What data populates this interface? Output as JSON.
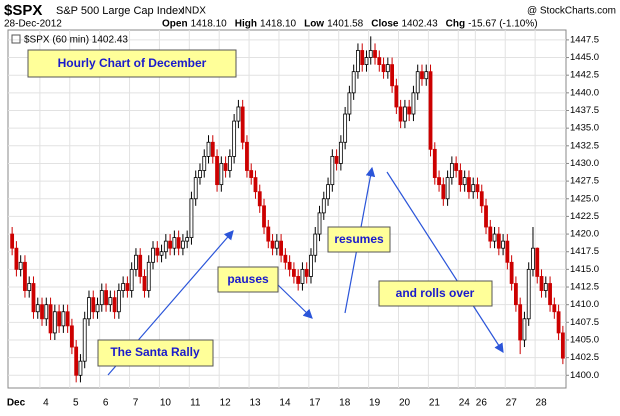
{
  "chart_data": {
    "type": "candlestick",
    "title": "$SPX",
    "subtitle": "S&P 500 Large Cap Index",
    "exchange": "INDX",
    "source": "@ StockCharts.com",
    "date": "28-Dec-2012",
    "header_stats": [
      {
        "label": "Open",
        "value": "1418.10"
      },
      {
        "label": "High",
        "value": "1418.10"
      },
      {
        "label": "Low",
        "value": "1401.58"
      },
      {
        "label": "Close",
        "value": "1402.43"
      },
      {
        "label": "Chg",
        "value": "-15.67 (-1.10%)"
      }
    ],
    "legend": "$SPX (60 min) 1402.43",
    "annotations": [
      "Hourly Chart of December",
      "The Santa Rally",
      "pauses",
      "resumes",
      "and rolls over"
    ],
    "up_color": "#000000",
    "down_color": "#cc0000",
    "grid": true,
    "ylim": [
      1398.2,
      1448.9
    ],
    "yticks": [
      {
        "value": 1400,
        "label": "1400.0"
      },
      1402.5,
      {
        "value": 1405,
        "label": "1405.0"
      },
      1407.5,
      {
        "value": 1410,
        "label": "1410.0"
      },
      1412.5,
      {
        "value": 1415,
        "label": "1415.0"
      },
      1417.5,
      {
        "value": 1420,
        "label": "1420.0"
      },
      1422.5,
      {
        "value": 1425,
        "label": "1425.0"
      },
      1427.5,
      {
        "value": 1430,
        "label": "1430.0"
      },
      1432.5,
      {
        "value": 1435,
        "label": "1435.0"
      },
      1437.5,
      {
        "value": 1440,
        "label": "1440.0"
      },
      1442.5,
      {
        "value": 1445,
        "label": "1445.0"
      },
      1447.5
    ],
    "categories": [
      "Dec",
      null,
      null,
      null,
      null,
      null,
      null,
      "4",
      null,
      null,
      null,
      null,
      null,
      null,
      "5",
      null,
      null,
      null,
      null,
      null,
      null,
      "6",
      null,
      null,
      null,
      null,
      null,
      null,
      "7",
      null,
      null,
      null,
      null,
      null,
      null,
      "10",
      null,
      null,
      null,
      null,
      null,
      null,
      "11",
      null,
      null,
      null,
      null,
      null,
      null,
      "12",
      null,
      null,
      null,
      null,
      null,
      null,
      "13",
      null,
      null,
      null,
      null,
      null,
      null,
      "14",
      null,
      null,
      null,
      null,
      null,
      null,
      "17",
      null,
      null,
      null,
      null,
      null,
      null,
      "18",
      null,
      null,
      null,
      null,
      null,
      null,
      "19",
      null,
      null,
      null,
      null,
      null,
      null,
      "20",
      null,
      null,
      null,
      null,
      null,
      null,
      "21",
      null,
      null,
      null,
      null,
      null,
      null,
      "24",
      null,
      null,
      null,
      "26",
      null,
      null,
      null,
      null,
      null,
      null,
      "27",
      null,
      null,
      null,
      null,
      null,
      null,
      "28",
      null,
      null,
      null,
      null,
      null,
      null
    ],
    "open": [
      1420,
      1418,
      1415,
      1416,
      1412,
      1413,
      1409,
      1410,
      1408,
      1410,
      1406,
      1409,
      1407,
      1409,
      1407,
      1404,
      1400,
      1402,
      1408,
      1411,
      1409,
      1410,
      1412,
      1410,
      1411,
      1409,
      1412,
      1413,
      1412,
      1415,
      1417,
      1414,
      1412,
      1416,
      1418,
      1417,
      1417.5,
      1419,
      1418,
      1419.5,
      1418,
      1419,
      1419.5,
      1425,
      1428,
      1429,
      1431,
      1433,
      1431,
      1427,
      1430,
      1429,
      1431,
      1436,
      1438,
      1433,
      1429,
      1428,
      1426,
      1424,
      1421,
      1419,
      1418,
      1419,
      1417,
      1416,
      1415,
      1414,
      1413,
      1415,
      1414,
      1417,
      1420,
      1423,
      1425,
      1427,
      1431,
      1430,
      1433,
      1437,
      1440,
      1443,
      1446,
      1444,
      1445,
      1446,
      1445,
      1444,
      1443,
      1444,
      1441,
      1438,
      1436,
      1438,
      1437,
      1440,
      1443,
      1442,
      1443,
      1432,
      1428,
      1427,
      1425,
      1428,
      1430,
      1429,
      1427,
      1428,
      1426,
      1427,
      1426,
      1424,
      1421,
      1419,
      1420,
      1418,
      1419,
      1416,
      1413,
      1410,
      1405,
      1408,
      1415,
      1418,
      1414,
      1412,
      1413,
      1410,
      1409,
      1406
    ],
    "high": [
      1421,
      1419,
      1417,
      1417,
      1414,
      1414,
      1411,
      1411,
      1411,
      1411,
      1410,
      1410,
      1410,
      1410,
      1408,
      1405,
      1403,
      1409,
      1412,
      1412,
      1411,
      1413,
      1413,
      1412,
      1412,
      1413,
      1414,
      1414,
      1416,
      1418,
      1418,
      1415,
      1417,
      1419,
      1419,
      1418.5,
      1420,
      1420,
      1420.5,
      1420.5,
      1420,
      1420.5,
      1426,
      1429,
      1430,
      1432,
      1434,
      1434,
      1432,
      1431,
      1431,
      1432,
      1437,
      1439,
      1439,
      1434,
      1430,
      1429,
      1427,
      1425,
      1422,
      1420,
      1420,
      1420,
      1418,
      1417,
      1416,
      1415,
      1416,
      1416,
      1418,
      1421,
      1424,
      1426,
      1428,
      1432,
      1432,
      1434,
      1438,
      1441,
      1444,
      1447,
      1447,
      1446,
      1448,
      1447,
      1446,
      1445,
      1445,
      1445,
      1442,
      1439,
      1439,
      1439,
      1441,
      1444,
      1444,
      1444,
      1444,
      1433,
      1429,
      1428,
      1429,
      1431,
      1431,
      1430,
      1429,
      1429,
      1428,
      1428,
      1427,
      1425,
      1422,
      1421,
      1421,
      1420,
      1420,
      1417,
      1414,
      1411,
      1409,
      1416,
      1421,
      1418.1,
      1415,
      1414,
      1414,
      1411,
      1410,
      1407
    ],
    "low": [
      1417,
      1414,
      1414,
      1411,
      1411,
      1408,
      1408,
      1407,
      1407,
      1405,
      1405,
      1406,
      1406,
      1406,
      1403,
      1399,
      1399,
      1401,
      1407,
      1408,
      1408,
      1409,
      1409,
      1409,
      1408,
      1408,
      1411,
      1411,
      1411,
      1414,
      1413,
      1411,
      1411,
      1415,
      1416,
      1416,
      1416.5,
      1417,
      1417,
      1417,
      1417,
      1418,
      1418.5,
      1424,
      1427,
      1428,
      1430,
      1430,
      1426,
      1426,
      1428,
      1428,
      1430,
      1435,
      1432,
      1428,
      1427,
      1425,
      1423,
      1420,
      1418,
      1417,
      1417,
      1416,
      1415,
      1414,
      1413,
      1412,
      1412,
      1413,
      1413,
      1416,
      1419,
      1422,
      1424,
      1426,
      1429,
      1429,
      1432,
      1436,
      1439,
      1442,
      1443,
      1443,
      1444,
      1444,
      1443,
      1442,
      1442,
      1440,
      1437,
      1435,
      1435,
      1436,
      1436,
      1439,
      1441,
      1441,
      1431,
      1427,
      1426,
      1424,
      1424,
      1427,
      1428,
      1426,
      1426,
      1425,
      1425,
      1425,
      1423,
      1420,
      1418,
      1418,
      1417,
      1417,
      1415,
      1412,
      1409,
      1403,
      1404,
      1407,
      1414,
      1413,
      1411,
      1411,
      1409,
      1408,
      1405,
      1401.58
    ],
    "close": [
      1418,
      1415,
      1416,
      1412,
      1413,
      1409,
      1410,
      1408,
      1410,
      1406,
      1409,
      1407,
      1409,
      1407,
      1404,
      1400,
      1402,
      1408,
      1411,
      1409,
      1410,
      1412,
      1410,
      1411,
      1409,
      1412,
      1413,
      1412,
      1415,
      1417,
      1414,
      1412,
      1416,
      1418,
      1417,
      1417.5,
      1419,
      1418,
      1419.5,
      1418,
      1419,
      1419.5,
      1425,
      1428,
      1429,
      1431,
      1433,
      1431,
      1427,
      1430,
      1429,
      1431,
      1436,
      1438,
      1433,
      1429,
      1428,
      1426,
      1424,
      1421,
      1419,
      1418,
      1419,
      1417,
      1416,
      1415,
      1414,
      1413,
      1415,
      1414,
      1417,
      1420,
      1423,
      1425,
      1427,
      1431,
      1430,
      1433,
      1437,
      1440,
      1443,
      1446,
      1444,
      1445,
      1446,
      1445,
      1444,
      1443,
      1444,
      1441,
      1438,
      1436,
      1438,
      1437,
      1440,
      1443,
      1442,
      1443,
      1432,
      1428,
      1427,
      1425,
      1428,
      1430,
      1429,
      1427,
      1428,
      1426,
      1427,
      1426,
      1424,
      1421,
      1419,
      1420,
      1418,
      1419,
      1416,
      1413,
      1410,
      1405,
      1408,
      1415,
      1418,
      1414,
      1412,
      1413,
      1410,
      1409,
      1406,
      1402.43
    ]
  }
}
